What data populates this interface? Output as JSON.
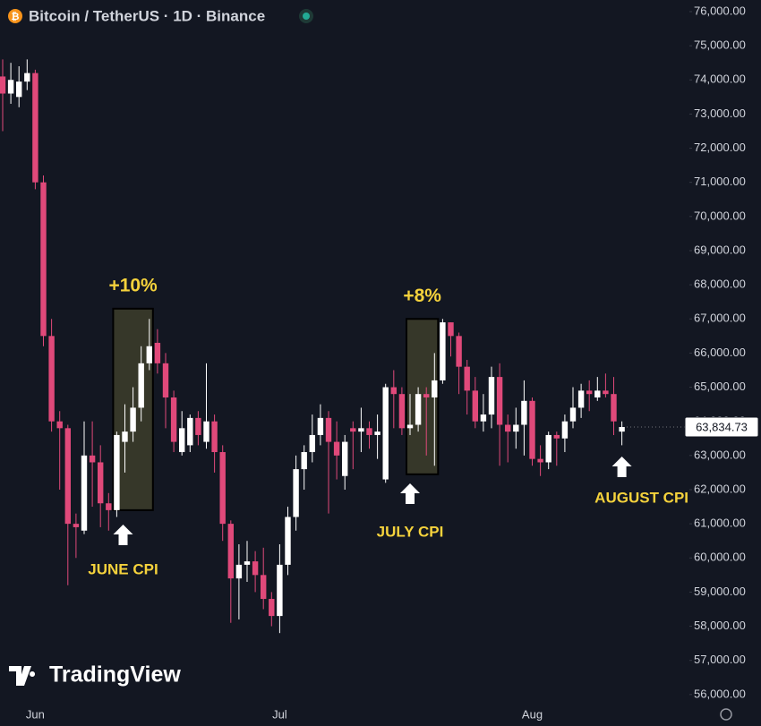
{
  "chart_data": {
    "type": "candlestick",
    "title": "Bitcoin / TetherUS · 1D · Binance",
    "brand": "TradingView",
    "categories": [
      null,
      null,
      null,
      null,
      "Jun",
      null,
      null,
      null,
      null,
      null,
      null,
      null,
      null,
      null,
      null,
      null,
      null,
      null,
      null,
      null,
      null,
      null,
      null,
      null,
      null,
      null,
      null,
      null,
      null,
      null,
      null,
      null,
      null,
      null,
      "Jul",
      null,
      null,
      null,
      null,
      null,
      null,
      null,
      null,
      null,
      null,
      null,
      null,
      null,
      null,
      null,
      null,
      null,
      null,
      null,
      null,
      null,
      null,
      null,
      null,
      null,
      null,
      null,
      null,
      null,
      null,
      "Aug",
      null,
      null,
      null,
      null,
      null,
      null,
      null,
      null,
      null,
      null,
      null
    ],
    "open": [
      74100,
      73600,
      73500,
      73950,
      74200,
      71000,
      66500,
      64000,
      63800,
      61000,
      60800,
      63000,
      62800,
      61600,
      61400,
      63400,
      63700,
      64400,
      65700,
      66300,
      65700,
      64700,
      63100,
      63300,
      64100,
      63400,
      64000,
      63100,
      61000,
      59400,
      59800,
      59900,
      59500,
      58800,
      58300,
      59800,
      61200,
      62600,
      63100,
      63600,
      64100,
      63400,
      62400,
      63800,
      63700,
      63800,
      63600,
      62300,
      65000,
      64800,
      63800,
      63900,
      64800,
      64700,
      65200,
      66900,
      66500,
      65600,
      64900,
      64000,
      64200,
      65300,
      63900,
      63700,
      63900,
      64600,
      62900,
      62800,
      63600,
      63500,
      64000,
      64400,
      64900,
      64700,
      64900,
      64800,
      63700
    ],
    "high": [
      74600,
      74500,
      74400,
      74600,
      74300,
      71200,
      67000,
      64300,
      63900,
      61300,
      64000,
      64000,
      63300,
      61900,
      63700,
      64500,
      65000,
      66200,
      67000,
      66700,
      66000,
      64900,
      64300,
      64200,
      64300,
      65700,
      64200,
      63300,
      61100,
      60400,
      60500,
      60200,
      60300,
      59000,
      60400,
      61500,
      63000,
      63300,
      64200,
      64500,
      64300,
      64000,
      63600,
      64000,
      64400,
      64000,
      64200,
      65100,
      65500,
      65000,
      64800,
      65000,
      65000,
      66000,
      67000,
      66900,
      66600,
      65800,
      65300,
      64800,
      65600,
      65700,
      64200,
      64400,
      65200,
      64700,
      63300,
      63700,
      63700,
      64200,
      65000,
      65100,
      65200,
      65300,
      65400,
      65300,
      64000
    ],
    "low": [
      72500,
      73300,
      73200,
      73700,
      70800,
      66200,
      63700,
      62000,
      59200,
      60000,
      60700,
      61500,
      60900,
      60800,
      61200,
      62500,
      63400,
      64000,
      65500,
      65400,
      63800,
      63100,
      63000,
      63100,
      63300,
      63200,
      62500,
      60500,
      58100,
      58200,
      59300,
      59000,
      58500,
      58000,
      57800,
      59500,
      60800,
      62000,
      62800,
      63300,
      61300,
      62300,
      62000,
      62600,
      63100,
      63200,
      62900,
      62200,
      63800,
      63600,
      63600,
      63700,
      63000,
      62700,
      65100,
      65900,
      64800,
      64200,
      63800,
      63700,
      63800,
      62700,
      62800,
      63200,
      63000,
      62700,
      62400,
      62600,
      62700,
      63100,
      63800,
      64100,
      64300,
      64600,
      64700,
      63600,
      63300
    ],
    "close": [
      73600,
      74000,
      73950,
      74200,
      71000,
      66500,
      64000,
      63800,
      61000,
      60900,
      63000,
      62800,
      61600,
      61400,
      63600,
      63700,
      64400,
      65700,
      66200,
      65700,
      64700,
      63400,
      63800,
      64100,
      63600,
      64000,
      63100,
      61000,
      59400,
      59800,
      59900,
      59500,
      58800,
      58300,
      59800,
      61200,
      62600,
      63100,
      63600,
      64100,
      63400,
      63000,
      63400,
      63700,
      63800,
      63600,
      63700,
      65000,
      64800,
      63800,
      63900,
      64800,
      64700,
      65200,
      66900,
      66500,
      65600,
      64900,
      64000,
      64200,
      65300,
      63900,
      63700,
      63900,
      64600,
      62900,
      62800,
      63600,
      63500,
      64000,
      64400,
      64900,
      64800,
      64900,
      64800,
      64000,
      63834.73
    ],
    "last_price": 63834.73,
    "last_price_label": "63,834.73",
    "up_color": "#ffffff",
    "down_color": "#e0497a",
    "annotations": [
      {
        "text": "+10%",
        "span": [
          14,
          18
        ],
        "low": 61400,
        "high": 67300
      },
      {
        "text": "+8%",
        "span": [
          50,
          53
        ],
        "low": 62450,
        "high": 67000
      }
    ],
    "events": [
      {
        "text": "JUNE CPI",
        "index": 15
      },
      {
        "text": "JULY CPI",
        "index": 50
      },
      {
        "text": "AUGUST CPI",
        "index": 76
      }
    ],
    "ylim": [
      55760,
      76340
    ],
    "yticks": [
      {
        "value": 56000,
        "label": "56,000.00"
      },
      {
        "value": 57000,
        "label": "57,000.00"
      },
      {
        "value": 58000,
        "label": "58,000.00"
      },
      {
        "value": 59000,
        "label": "59,000.00"
      },
      {
        "value": 60000,
        "label": "60,000.00"
      },
      {
        "value": 61000,
        "label": "61,000.00"
      },
      {
        "value": 62000,
        "label": "62,000.00"
      },
      {
        "value": 63000,
        "label": "63,000.00"
      },
      {
        "value": 64000,
        "label": "64,000.00"
      },
      {
        "value": 65000,
        "label": "65,000.00"
      },
      {
        "value": 66000,
        "label": "66,000.00"
      },
      {
        "value": 67000,
        "label": "67,000.00"
      },
      {
        "value": 68000,
        "label": "68,000.00"
      },
      {
        "value": 69000,
        "label": "69,000.00"
      },
      {
        "value": 70000,
        "label": "70,000.00"
      },
      {
        "value": 71000,
        "label": "71,000.00"
      },
      {
        "value": 72000,
        "label": "72,000.00"
      },
      {
        "value": 73000,
        "label": "73,000.00"
      },
      {
        "value": 74000,
        "label": "74,000.00"
      },
      {
        "value": 75000,
        "label": "75,000.00"
      },
      {
        "value": 76000,
        "label": "76,000.00"
      }
    ],
    "grid": false
  }
}
